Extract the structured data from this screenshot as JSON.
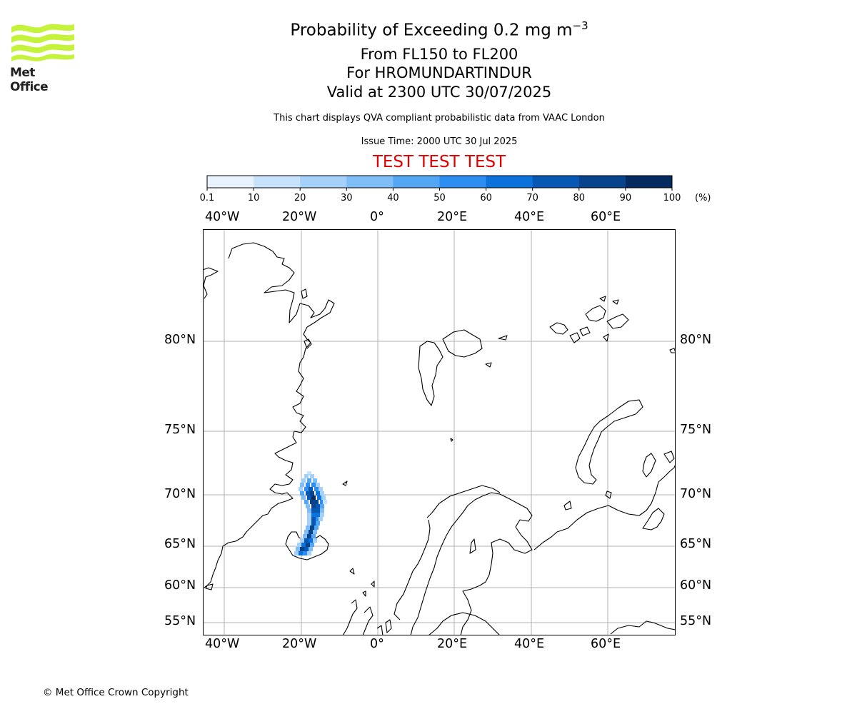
{
  "logo": {
    "text": "Met Office",
    "color": "#c5f23a"
  },
  "header": {
    "title_main": "Probability of Exceeding 0.2 mg m",
    "title_sup": "−3",
    "flight_levels": "From FL150 to FL200",
    "volcano": "For HROMUNDARTINDUR",
    "valid": "Valid at 2300 UTC 30/07/2025",
    "description": "This chart displays QVA compliant probabilistic data from VAAC London",
    "issue_time": "Issue Time: 2000 UTC 30 Jul 2025",
    "test_banner": "TEST TEST TEST"
  },
  "colorbar": {
    "ticks": [
      "0.1",
      "10",
      "20",
      "30",
      "40",
      "50",
      "60",
      "70",
      "80",
      "90",
      "100"
    ],
    "unit": "(%)",
    "colors": [
      "#e8f3fe",
      "#c6e2fc",
      "#a4d0fa",
      "#7fbdf7",
      "#52a6f3",
      "#2b8ef0",
      "#0b72dc",
      "#0758b5",
      "#08448c",
      "#042b5f"
    ]
  },
  "map": {
    "lon_labels": [
      "40°W",
      "20°W",
      "0°",
      "20°E",
      "40°E",
      "60°E"
    ],
    "lat_labels": [
      "80°N",
      "75°N",
      "70°N",
      "65°N",
      "60°N",
      "55°N"
    ],
    "coast_color": "#000000",
    "grid_color": "#b0b0b0"
  },
  "footer": {
    "copyright": "© Met Office Crown Copyright"
  }
}
